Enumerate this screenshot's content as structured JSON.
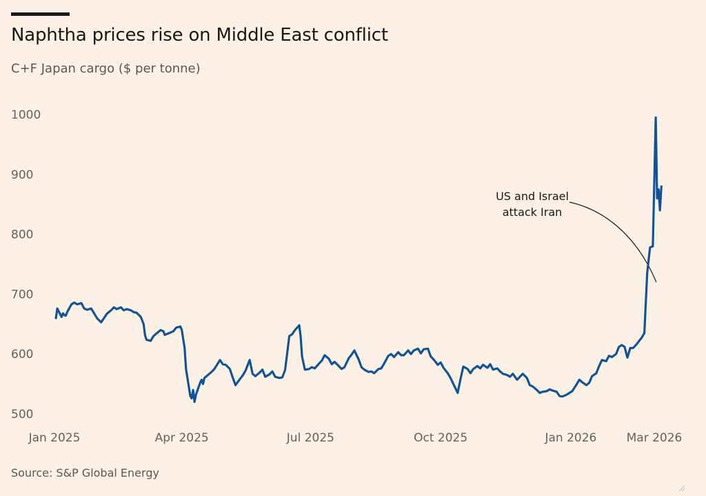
{
  "title": "Naphtha prices rise on Middle East conflict",
  "subtitle": "C+F Japan cargo ($ per tonne)",
  "source": "Source: S&P Global Energy",
  "chart_data": {
    "type": "line",
    "title": "Naphtha prices rise on Middle East conflict",
    "subtitle": "C+F Japan cargo ($ per tonne)",
    "xlabel": "",
    "ylabel": "",
    "ylim": [
      500,
      1000
    ],
    "yticks": [
      500,
      600,
      700,
      800,
      900,
      1000
    ],
    "xlim": [
      "2025-01-01",
      "2026-03-25"
    ],
    "xticks": [
      {
        "date": "2025-01-01",
        "label": "Jan 2025"
      },
      {
        "date": "2025-04-01",
        "label": "Apr 2025"
      },
      {
        "date": "2025-07-01",
        "label": "Jul 2025"
      },
      {
        "date": "2025-10-01",
        "label": "Oct 2025"
      },
      {
        "date": "2026-01-01",
        "label": "Jan 2026"
      },
      {
        "date": "2026-03-01",
        "label": "Mar 2026"
      }
    ],
    "grid": false,
    "line_color": "#0f5499",
    "annotations": [
      {
        "text_lines": [
          "US and Israel",
          "attack Iran"
        ],
        "date": "2026-02-28",
        "value": 720
      }
    ],
    "series": [
      {
        "points": [
          [
            "2025-01-02",
            660
          ],
          [
            "2025-01-03",
            676
          ],
          [
            "2025-01-06",
            662
          ],
          [
            "2025-01-07",
            668
          ],
          [
            "2025-01-08",
            665
          ],
          [
            "2025-01-09",
            664
          ],
          [
            "2025-01-10",
            670
          ],
          [
            "2025-01-13",
            683
          ],
          [
            "2025-01-15",
            686
          ],
          [
            "2025-01-17",
            683
          ],
          [
            "2025-01-20",
            685
          ],
          [
            "2025-01-22",
            676
          ],
          [
            "2025-01-24",
            674
          ],
          [
            "2025-01-27",
            676
          ],
          [
            "2025-01-29",
            668
          ],
          [
            "2025-01-31",
            660
          ],
          [
            "2025-02-03",
            653
          ],
          [
            "2025-02-05",
            660
          ],
          [
            "2025-02-07",
            667
          ],
          [
            "2025-02-10",
            673
          ],
          [
            "2025-02-12",
            678
          ],
          [
            "2025-02-14",
            675
          ],
          [
            "2025-02-17",
            678
          ],
          [
            "2025-02-19",
            673
          ],
          [
            "2025-02-21",
            675
          ],
          [
            "2025-02-24",
            673
          ],
          [
            "2025-02-26",
            670
          ],
          [
            "2025-02-28",
            669
          ],
          [
            "2025-03-03",
            662
          ],
          [
            "2025-03-05",
            650
          ],
          [
            "2025-03-06",
            632
          ],
          [
            "2025-03-07",
            624
          ],
          [
            "2025-03-10",
            622
          ],
          [
            "2025-03-12",
            630
          ],
          [
            "2025-03-14",
            634
          ],
          [
            "2025-03-17",
            640
          ],
          [
            "2025-03-19",
            638
          ],
          [
            "2025-03-20",
            632
          ],
          [
            "2025-03-24",
            636
          ],
          [
            "2025-03-26",
            638
          ],
          [
            "2025-03-28",
            644
          ],
          [
            "2025-03-31",
            646
          ],
          [
            "2025-04-01",
            640
          ],
          [
            "2025-04-03",
            610
          ],
          [
            "2025-04-04",
            575
          ],
          [
            "2025-04-07",
            530
          ],
          [
            "2025-04-08",
            526
          ],
          [
            "2025-04-09",
            540
          ],
          [
            "2025-04-10",
            520
          ],
          [
            "2025-04-11",
            532
          ],
          [
            "2025-04-14",
            552
          ],
          [
            "2025-04-15",
            557
          ],
          [
            "2025-04-16",
            550
          ],
          [
            "2025-04-17",
            560
          ],
          [
            "2025-04-22",
            570
          ],
          [
            "2025-04-24",
            575
          ],
          [
            "2025-04-28",
            590
          ],
          [
            "2025-04-30",
            583
          ],
          [
            "2025-05-02",
            582
          ],
          [
            "2025-05-05",
            575
          ],
          [
            "2025-05-07",
            561
          ],
          [
            "2025-05-09",
            548
          ],
          [
            "2025-05-12",
            558
          ],
          [
            "2025-05-14",
            564
          ],
          [
            "2025-05-16",
            572
          ],
          [
            "2025-05-19",
            590
          ],
          [
            "2025-05-21",
            567
          ],
          [
            "2025-05-23",
            563
          ],
          [
            "2025-05-26",
            569
          ],
          [
            "2025-05-28",
            574
          ],
          [
            "2025-05-30",
            562
          ],
          [
            "2025-06-02",
            566
          ],
          [
            "2025-06-04",
            571
          ],
          [
            "2025-06-06",
            562
          ],
          [
            "2025-06-09",
            560
          ],
          [
            "2025-06-11",
            561
          ],
          [
            "2025-06-13",
            573
          ],
          [
            "2025-06-16",
            630
          ],
          [
            "2025-06-18",
            633
          ],
          [
            "2025-06-20",
            640
          ],
          [
            "2025-06-23",
            648
          ],
          [
            "2025-06-24",
            630
          ],
          [
            "2025-06-25",
            596
          ],
          [
            "2025-06-27",
            574
          ],
          [
            "2025-06-30",
            575
          ],
          [
            "2025-07-02",
            578
          ],
          [
            "2025-07-04",
            576
          ],
          [
            "2025-07-07",
            584
          ],
          [
            "2025-07-09",
            589
          ],
          [
            "2025-07-11",
            598
          ],
          [
            "2025-07-14",
            592
          ],
          [
            "2025-07-16",
            583
          ],
          [
            "2025-07-18",
            587
          ],
          [
            "2025-07-21",
            580
          ],
          [
            "2025-07-23",
            575
          ],
          [
            "2025-07-25",
            578
          ],
          [
            "2025-07-28",
            593
          ],
          [
            "2025-07-30",
            599
          ],
          [
            "2025-08-01",
            606
          ],
          [
            "2025-08-04",
            591
          ],
          [
            "2025-08-06",
            578
          ],
          [
            "2025-08-08",
            574
          ],
          [
            "2025-08-11",
            570
          ],
          [
            "2025-08-13",
            571
          ],
          [
            "2025-08-15",
            568
          ],
          [
            "2025-08-18",
            575
          ],
          [
            "2025-08-20",
            576
          ],
          [
            "2025-08-22",
            584
          ],
          [
            "2025-08-25",
            597
          ],
          [
            "2025-08-27",
            600
          ],
          [
            "2025-08-29",
            595
          ],
          [
            "2025-09-01",
            603
          ],
          [
            "2025-09-03",
            598
          ],
          [
            "2025-09-05",
            598
          ],
          [
            "2025-09-08",
            606
          ],
          [
            "2025-09-10",
            600
          ],
          [
            "2025-09-12",
            606
          ],
          [
            "2025-09-15",
            609
          ],
          [
            "2025-09-17",
            601
          ],
          [
            "2025-09-19",
            608
          ],
          [
            "2025-09-22",
            609
          ],
          [
            "2025-09-24",
            596
          ],
          [
            "2025-09-26",
            591
          ],
          [
            "2025-09-29",
            582
          ],
          [
            "2025-10-01",
            586
          ],
          [
            "2025-10-03",
            577
          ],
          [
            "2025-10-06",
            568
          ],
          [
            "2025-10-08",
            560
          ],
          [
            "2025-10-10",
            550
          ],
          [
            "2025-10-13",
            535
          ],
          [
            "2025-10-15",
            558
          ],
          [
            "2025-10-17",
            579
          ],
          [
            "2025-10-20",
            575
          ],
          [
            "2025-10-22",
            568
          ],
          [
            "2025-10-24",
            575
          ],
          [
            "2025-10-27",
            580
          ],
          [
            "2025-10-29",
            576
          ],
          [
            "2025-10-31",
            582
          ],
          [
            "2025-11-03",
            577
          ],
          [
            "2025-11-05",
            583
          ],
          [
            "2025-11-07",
            574
          ],
          [
            "2025-11-10",
            576
          ],
          [
            "2025-11-12",
            571
          ],
          [
            "2025-11-14",
            567
          ],
          [
            "2025-11-17",
            565
          ],
          [
            "2025-11-19",
            562
          ],
          [
            "2025-11-21",
            567
          ],
          [
            "2025-11-24",
            557
          ],
          [
            "2025-11-26",
            562
          ],
          [
            "2025-11-28",
            567
          ],
          [
            "2025-12-01",
            560
          ],
          [
            "2025-12-03",
            548
          ],
          [
            "2025-12-05",
            546
          ],
          [
            "2025-12-08",
            540
          ],
          [
            "2025-12-10",
            535
          ],
          [
            "2025-12-12",
            537
          ],
          [
            "2025-12-15",
            538
          ],
          [
            "2025-12-17",
            541
          ],
          [
            "2025-12-19",
            539
          ],
          [
            "2025-12-22",
            537
          ],
          [
            "2025-12-24",
            530
          ],
          [
            "2025-12-26",
            529
          ],
          [
            "2025-12-29",
            532
          ],
          [
            "2026-01-02",
            538
          ],
          [
            "2026-01-05",
            549
          ],
          [
            "2026-01-07",
            557
          ],
          [
            "2026-01-09",
            553
          ],
          [
            "2026-01-12",
            548
          ],
          [
            "2026-01-14",
            552
          ],
          [
            "2026-01-16",
            563
          ],
          [
            "2026-01-19",
            568
          ],
          [
            "2026-01-21",
            580
          ],
          [
            "2026-01-23",
            590
          ],
          [
            "2026-01-26",
            588
          ],
          [
            "2026-01-28",
            597
          ],
          [
            "2026-01-30",
            595
          ],
          [
            "2026-02-02",
            600
          ],
          [
            "2026-02-04",
            612
          ],
          [
            "2026-02-06",
            615
          ],
          [
            "2026-02-08",
            612
          ],
          [
            "2026-02-10",
            594
          ],
          [
            "2026-02-12",
            610
          ],
          [
            "2026-02-14",
            610
          ],
          [
            "2026-02-16",
            615
          ],
          [
            "2026-02-18",
            621
          ],
          [
            "2026-02-20",
            627
          ],
          [
            "2026-02-22",
            635
          ],
          [
            "2026-02-24",
            735
          ],
          [
            "2026-02-26",
            778
          ],
          [
            "2026-02-28",
            780
          ],
          [
            "2026-03-02",
            995
          ],
          [
            "2026-03-03",
            860
          ],
          [
            "2026-03-04",
            875
          ],
          [
            "2026-03-05",
            840
          ],
          [
            "2026-03-06",
            880
          ]
        ]
      }
    ]
  }
}
